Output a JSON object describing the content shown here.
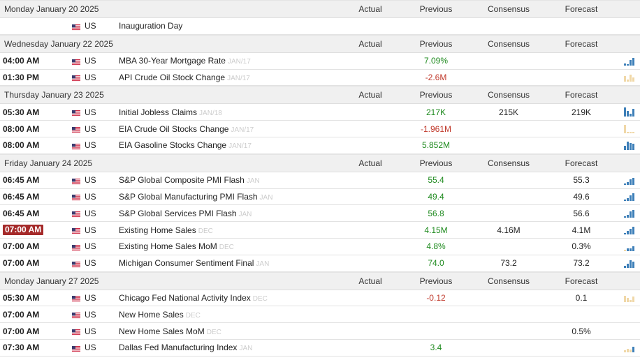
{
  "columns": {
    "actual": "Actual",
    "previous": "Previous",
    "consensus": "Consensus",
    "forecast": "Forecast"
  },
  "days": [
    {
      "date": "Monday January 20 2025",
      "show_columns": true,
      "events": [
        {
          "time": "",
          "country": "US",
          "event": "Inauguration Day",
          "ref": "",
          "actual": "",
          "previous": "",
          "previous_color": "",
          "consensus": "",
          "forecast": "",
          "chart": []
        }
      ]
    },
    {
      "date": "Wednesday January 22 2025",
      "show_columns": true,
      "events": [
        {
          "time": "04:00 AM",
          "country": "US",
          "event": "MBA 30-Year Mortgage Rate",
          "ref": "JAN/17",
          "actual": "",
          "previous": "7.09%",
          "previous_color": "green",
          "consensus": "",
          "forecast": "",
          "chart": [
            [
              3,
              "b"
            ],
            [
              2,
              "b"
            ],
            [
              8,
              "b"
            ],
            [
              11,
              "b"
            ]
          ]
        },
        {
          "time": "01:30 PM",
          "country": "US",
          "event": "API Crude Oil Stock Change",
          "ref": "JAN/17",
          "actual": "",
          "previous": "-2.6M",
          "previous_color": "red",
          "consensus": "",
          "forecast": "",
          "chart": [
            [
              8,
              "o"
            ],
            [
              3,
              "o"
            ],
            [
              10,
              "o"
            ],
            [
              6,
              "o"
            ]
          ]
        }
      ]
    },
    {
      "date": "Thursday January 23 2025",
      "show_columns": true,
      "events": [
        {
          "time": "05:30 AM",
          "country": "US",
          "event": "Initial Jobless Claims",
          "ref": "JAN/18",
          "actual": "",
          "previous": "217K",
          "previous_color": "green",
          "consensus": "215K",
          "forecast": "219K",
          "chart": [
            [
              13,
              "b"
            ],
            [
              8,
              "b"
            ],
            [
              4,
              "b"
            ],
            [
              11,
              "b"
            ]
          ]
        },
        {
          "time": "08:00 AM",
          "country": "US",
          "event": "EIA Crude Oil Stocks Change",
          "ref": "JAN/17",
          "actual": "",
          "previous": "-1.961M",
          "previous_color": "red",
          "consensus": "",
          "forecast": "",
          "chart": [
            [
              12,
              "o"
            ],
            [
              2,
              "o"
            ],
            [
              2,
              "o"
            ],
            [
              2,
              "o"
            ]
          ]
        },
        {
          "time": "08:00 AM",
          "country": "US",
          "event": "EIA Gasoline Stocks Change",
          "ref": "JAN/17",
          "actual": "",
          "previous": "5.852M",
          "previous_color": "green",
          "consensus": "",
          "forecast": "",
          "chart": [
            [
              6,
              "b"
            ],
            [
              12,
              "b"
            ],
            [
              10,
              "b"
            ],
            [
              9,
              "b"
            ]
          ]
        }
      ]
    },
    {
      "date": "Friday January 24 2025",
      "show_columns": true,
      "events": [
        {
          "time": "06:45 AM",
          "country": "US",
          "event": "S&P Global Composite PMI Flash",
          "ref": "JAN",
          "actual": "",
          "previous": "55.4",
          "previous_color": "green",
          "consensus": "",
          "forecast": "55.3",
          "chart": [
            [
              2,
              "b"
            ],
            [
              4,
              "b"
            ],
            [
              8,
              "b"
            ],
            [
              10,
              "b"
            ]
          ]
        },
        {
          "time": "06:45 AM",
          "country": "US",
          "event": "S&P Global Manufacturing PMI Flash",
          "ref": "JAN",
          "actual": "",
          "previous": "49.4",
          "previous_color": "green",
          "consensus": "",
          "forecast": "49.6",
          "chart": [
            [
              2,
              "b"
            ],
            [
              4,
              "b"
            ],
            [
              8,
              "b"
            ],
            [
              11,
              "b"
            ]
          ]
        },
        {
          "time": "06:45 AM",
          "country": "US",
          "event": "S&P Global Services PMI Flash",
          "ref": "JAN",
          "actual": "",
          "previous": "56.8",
          "previous_color": "green",
          "consensus": "",
          "forecast": "56.6",
          "chart": [
            [
              2,
              "b"
            ],
            [
              4,
              "b"
            ],
            [
              9,
              "b"
            ],
            [
              11,
              "b"
            ]
          ]
        },
        {
          "time": "07:00 AM",
          "time_highlight": true,
          "country": "US",
          "event": "Existing Home Sales",
          "ref": "DEC",
          "actual": "",
          "previous": "4.15M",
          "previous_color": "green",
          "consensus": "4.16M",
          "forecast": "4.1M",
          "chart": [
            [
              2,
              "b"
            ],
            [
              5,
              "b"
            ],
            [
              8,
              "b"
            ],
            [
              11,
              "b"
            ]
          ]
        },
        {
          "time": "07:00 AM",
          "country": "US",
          "event": "Existing Home Sales MoM",
          "ref": "DEC",
          "actual": "",
          "previous": "4.8%",
          "previous_color": "green",
          "consensus": "",
          "forecast": "0.3%",
          "chart": [
            [
              2,
              "o"
            ],
            [
              4,
              "b"
            ],
            [
              4,
              "b"
            ],
            [
              7,
              "b"
            ]
          ]
        },
        {
          "time": "07:00 AM",
          "country": "US",
          "event": "Michigan Consumer Sentiment Final",
          "ref": "JAN",
          "actual": "",
          "previous": "74.0",
          "previous_color": "green",
          "consensus": "73.2",
          "forecast": "73.2",
          "chart": [
            [
              3,
              "b"
            ],
            [
              6,
              "b"
            ],
            [
              11,
              "b"
            ],
            [
              9,
              "b"
            ]
          ]
        }
      ]
    },
    {
      "date": "Monday January 27 2025",
      "show_columns": true,
      "events": [
        {
          "time": "05:30 AM",
          "country": "US",
          "event": "Chicago Fed National Activity Index",
          "ref": "DEC",
          "actual": "",
          "previous": "-0.12",
          "previous_color": "red",
          "consensus": "",
          "forecast": "0.1",
          "chart": [
            [
              9,
              "o"
            ],
            [
              6,
              "o"
            ],
            [
              3,
              "o"
            ],
            [
              8,
              "o"
            ]
          ]
        },
        {
          "time": "07:00 AM",
          "country": "US",
          "event": "New Home Sales",
          "ref": "DEC",
          "actual": "",
          "previous": "",
          "previous_color": "",
          "consensus": "",
          "forecast": "",
          "chart": []
        },
        {
          "time": "07:00 AM",
          "country": "US",
          "event": "New Home Sales MoM",
          "ref": "DEC",
          "actual": "",
          "previous": "",
          "previous_color": "",
          "consensus": "",
          "forecast": "0.5%",
          "chart": []
        },
        {
          "time": "07:30 AM",
          "country": "US",
          "event": "Dallas Fed Manufacturing Index",
          "ref": "JAN",
          "actual": "",
          "previous": "3.4",
          "previous_color": "green",
          "consensus": "",
          "forecast": "",
          "chart": [
            [
              3,
              "o"
            ],
            [
              5,
              "o"
            ],
            [
              4,
              "o"
            ],
            [
              8,
              "b"
            ]
          ]
        }
      ]
    }
  ]
}
